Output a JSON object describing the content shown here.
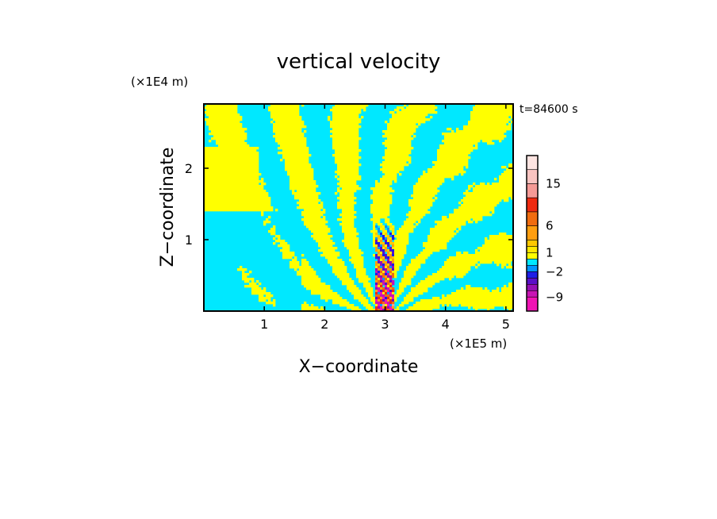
{
  "chart_data": {
    "type": "heatmap",
    "title": "vertical velocity",
    "xlabel": "X−coordinate",
    "ylabel": "Z−coordinate",
    "x_scale_label": "(×1E5 m)",
    "y_scale_label": "(×1E4 m)",
    "time_label": "t=84600 s",
    "xlim": [
      0,
      5.12
    ],
    "ylim": [
      0,
      2.9
    ],
    "x_ticks": [
      {
        "value": 1,
        "label": "1"
      },
      {
        "value": 2,
        "label": "2"
      },
      {
        "value": 3,
        "label": "3"
      },
      {
        "value": 4,
        "label": "4"
      },
      {
        "value": 5,
        "label": "5"
      }
    ],
    "y_ticks": [
      {
        "value": 1,
        "label": "1"
      },
      {
        "value": 2,
        "label": "2"
      }
    ],
    "grid": false,
    "colorbar": {
      "placement": "right",
      "levels": [
        {
          "lower": 18,
          "upper": 21,
          "color": "#fde4e1"
        },
        {
          "lower": 15,
          "upper": 18,
          "color": "#f9c4c1"
        },
        {
          "lower": 12,
          "upper": 15,
          "color": "#f59a96"
        },
        {
          "lower": 9,
          "upper": 12,
          "color": "#ef2a10"
        },
        {
          "lower": 6,
          "upper": 9,
          "color": "#f06c10"
        },
        {
          "lower": 3,
          "upper": 6,
          "color": "#ff9e10"
        },
        {
          "lower": 2,
          "upper": 3,
          "color": "#ffc800"
        },
        {
          "lower": 1,
          "upper": 2,
          "color": "#ffe800"
        },
        {
          "lower": 0,
          "upper": 1,
          "color": "#ffff00"
        },
        {
          "lower": -1,
          "upper": 0,
          "color": "#00e8ff"
        },
        {
          "lower": -2,
          "upper": -1,
          "color": "#0096ff"
        },
        {
          "lower": -3,
          "upper": -2,
          "color": "#1e1ee6"
        },
        {
          "lower": -5,
          "upper": -3,
          "color": "#5a10c8"
        },
        {
          "lower": -7,
          "upper": -5,
          "color": "#9610b4"
        },
        {
          "lower": -9,
          "upper": -7,
          "color": "#c814b4"
        },
        {
          "lower": -12,
          "upper": -9,
          "color": "#f014b4"
        }
      ],
      "labels": [
        {
          "value": 15,
          "label": "15"
        },
        {
          "value": 6,
          "label": "6"
        },
        {
          "value": 1,
          "label": "1"
        },
        {
          "value": -2,
          "label": "−2"
        },
        {
          "value": -9,
          "label": "−9"
        }
      ]
    },
    "field": {
      "description_colors": {
        "positive": "#ffff00",
        "negative": "#00e8ff"
      }
    }
  }
}
